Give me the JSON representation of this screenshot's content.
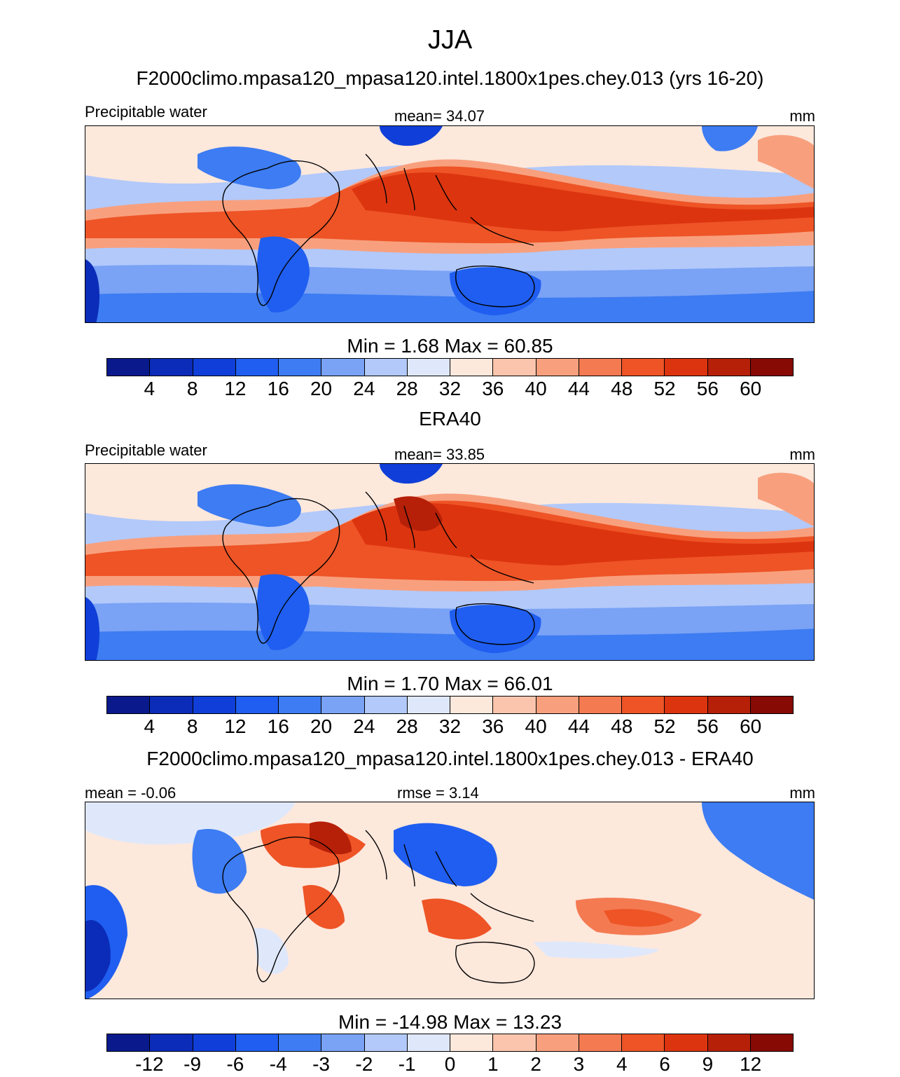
{
  "title": "JJA",
  "colors": {
    "scale": [
      "#0a1a8c",
      "#0b2cb8",
      "#0f3fd8",
      "#1f5ef0",
      "#3d7cf2",
      "#7aa2f5",
      "#b2c9fa",
      "#dfe8fb",
      "#fde8dc",
      "#fbc5ad",
      "#f8a07e",
      "#f47a52",
      "#ee5426",
      "#dd3410",
      "#b62008",
      "#870a04"
    ]
  },
  "panels": [
    {
      "heading": "F2000climo.mpasa120_mpasa120.intel.1800x1pes.chey.013 (yrs 16-20)",
      "variable": "Precipitable water",
      "center_label": "mean=  34.07",
      "units": "mm",
      "minmax": "Min =   1.68 Max =  60.85",
      "ticks": [
        "4",
        "8",
        "12",
        "16",
        "20",
        "24",
        "28",
        "32",
        "36",
        "40",
        "44",
        "48",
        "52",
        "56",
        "60"
      ]
    },
    {
      "heading": "ERA40",
      "variable": "Precipitable water",
      "center_label": "mean=  33.85",
      "units": "mm",
      "minmax": "Min =   1.70 Max =  66.01",
      "ticks": [
        "4",
        "8",
        "12",
        "16",
        "20",
        "24",
        "28",
        "32",
        "36",
        "40",
        "44",
        "48",
        "52",
        "56",
        "60"
      ]
    },
    {
      "heading": "F2000climo.mpasa120_mpasa120.intel.1800x1pes.chey.013 - ERA40",
      "variable": "mean =  -0.06",
      "center_label": "rmse =   3.14",
      "units": "mm",
      "minmax": "Min = -14.98 Max =  13.23",
      "ticks": [
        "-12",
        "-9",
        "-6",
        "-4",
        "-3",
        "-2",
        "-1",
        "0",
        "1",
        "2",
        "3",
        "4",
        "6",
        "9",
        "12"
      ]
    }
  ]
}
